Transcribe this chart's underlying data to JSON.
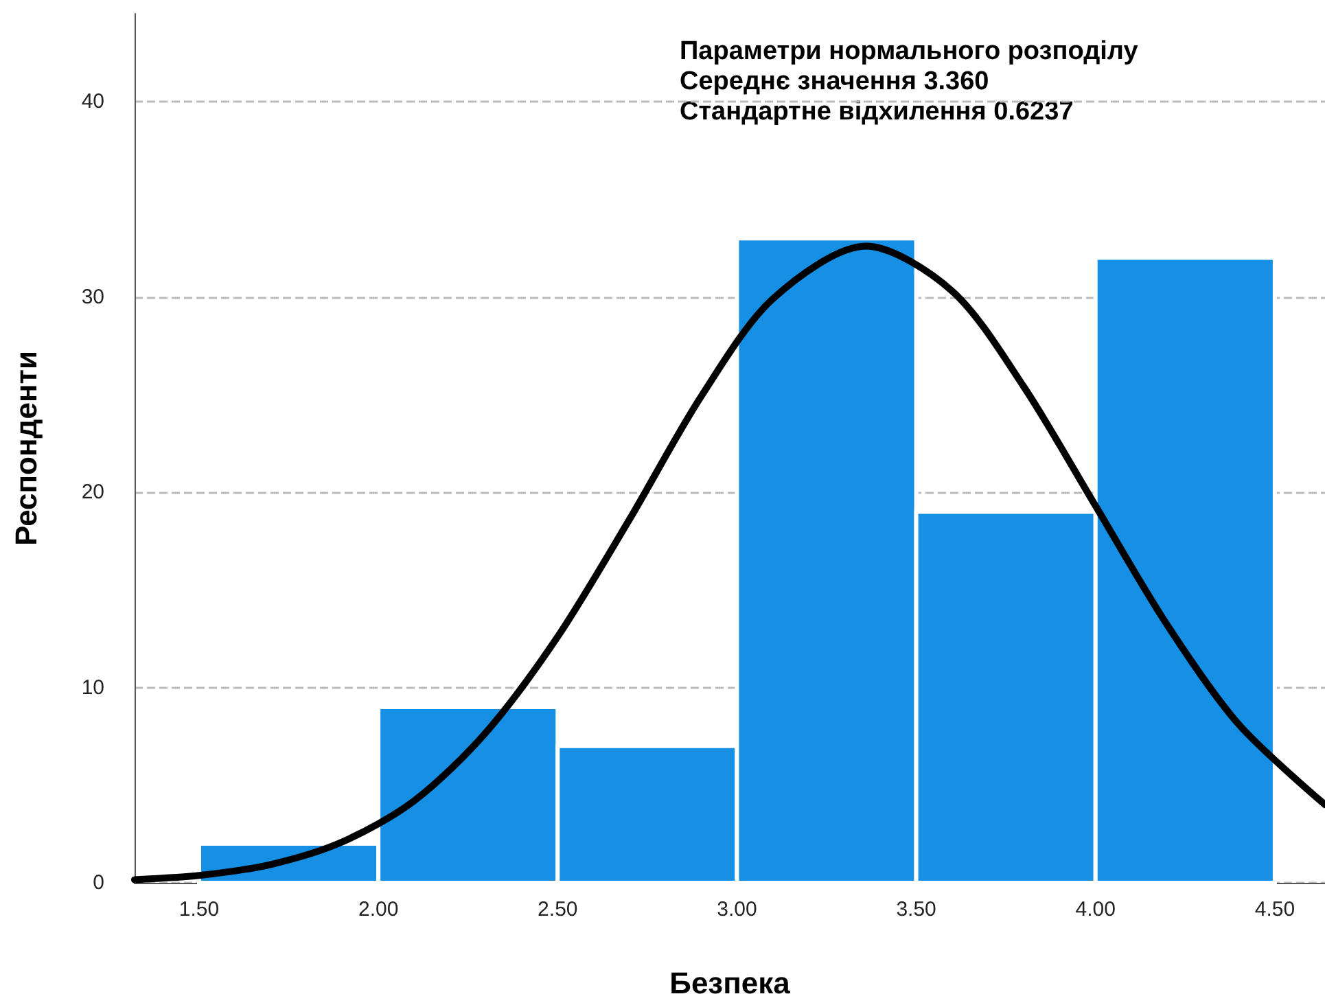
{
  "chart_data": {
    "type": "histogram",
    "xlabel": "Безпека",
    "ylabel": "Респонденти",
    "bins": [
      1.5,
      2.0,
      2.5,
      3.0,
      3.5,
      4.0,
      4.5
    ],
    "values": [
      2,
      9,
      7,
      33,
      19,
      32
    ],
    "color": "#1590e5",
    "series": [
      {
        "type": "line",
        "color": "#000000",
        "x": [
          1.32,
          1.5,
          1.7,
          1.9,
          2.1,
          2.3,
          2.5,
          2.7,
          2.9,
          3.1,
          3.36,
          3.6,
          3.8,
          4.0,
          4.2,
          4.4,
          4.64
        ],
        "values": [
          0.16,
          0.38,
          0.94,
          2.1,
          4.2,
          7.7,
          12.6,
          18.6,
          24.9,
          29.9,
          32.6,
          30.3,
          25.4,
          19.3,
          13.2,
          8.1,
          4.0
        ]
      }
    ],
    "xlim": [
      1.32,
      4.64
    ],
    "ylim": [
      0,
      44.5
    ],
    "xticks": [
      {
        "value": 1.5,
        "label": "1.50"
      },
      {
        "value": 2.0,
        "label": "2.00"
      },
      {
        "value": 2.5,
        "label": "2.50"
      },
      {
        "value": 3.0,
        "label": "3.00"
      },
      {
        "value": 3.5,
        "label": "3.50"
      },
      {
        "value": 4.0,
        "label": "4.00"
      },
      {
        "value": 4.5,
        "label": "4.50"
      }
    ],
    "yticks": [
      0,
      10,
      20,
      30,
      40
    ],
    "grid": "y",
    "marker": "none",
    "line_style": "solid",
    "annotations": [
      "Параметри нормального розподілу",
      "Середнє значення 3.360",
      "Стандартне відхилення 0.6237"
    ]
  }
}
